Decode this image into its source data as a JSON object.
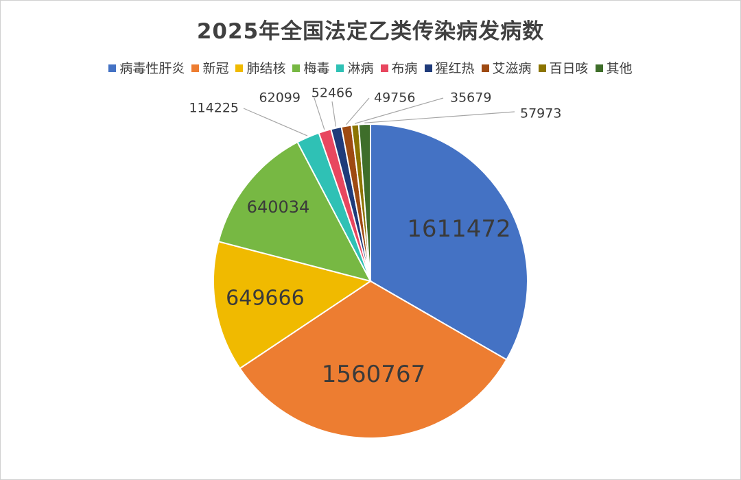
{
  "chart_data": {
    "type": "pie",
    "title": "2025年全国法定乙类传染病发病数",
    "legend_position": "top",
    "slices": [
      {
        "label": "病毒性肝炎",
        "value": 1611472,
        "color": "#4472C4"
      },
      {
        "label": "新冠",
        "value": 1560767,
        "color": "#ED7D31"
      },
      {
        "label": "肺结核",
        "value": 649666,
        "color": "#F0BA00"
      },
      {
        "label": "梅毒",
        "value": 640034,
        "color": "#77B843"
      },
      {
        "label": "淋病",
        "value": 114225,
        "color": "#2FC1B5"
      },
      {
        "label": "布病",
        "value": 62099,
        "color": "#E8475F"
      },
      {
        "label": "猩红热",
        "value": 52466,
        "color": "#1F3B7A"
      },
      {
        "label": "艾滋病",
        "value": 49756,
        "color": "#9E4A12"
      },
      {
        "label": "百日咳",
        "value": 35679,
        "color": "#8C7400"
      },
      {
        "label": "其他",
        "value": 57973,
        "color": "#3E6E2A"
      }
    ]
  }
}
